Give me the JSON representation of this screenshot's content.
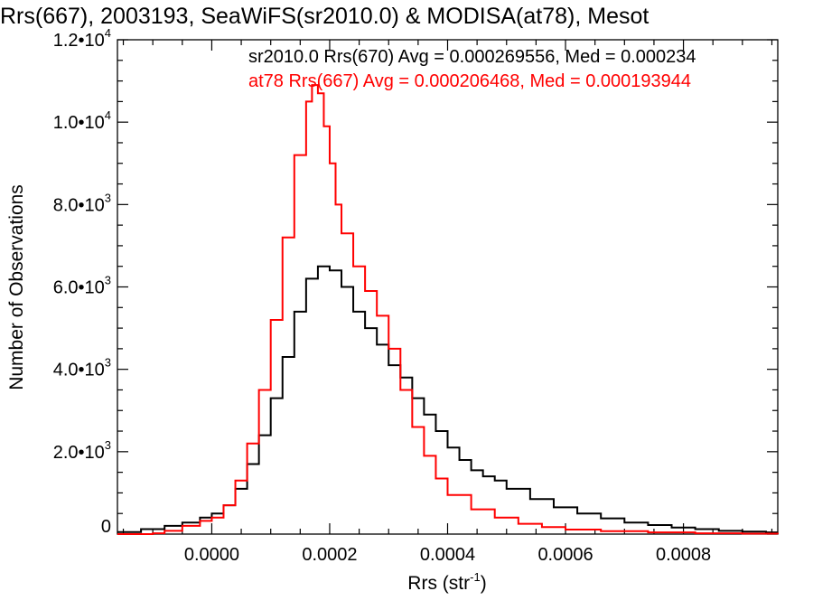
{
  "chart_data": {
    "type": "line",
    "title": "Rrs(667), 2003193, SeaWiFS(sr2010.0) & MODISA(at78), Mesot",
    "xlabel": "Rrs (str",
    "xlabel_sup": "-1",
    "xlabel_close": ")",
    "ylabel": "Number of Observations",
    "xlim": [
      -0.00016,
      0.00096
    ],
    "ylim": [
      0,
      12000
    ],
    "x_ticks": [
      {
        "value": 0.0,
        "label": "0.0000"
      },
      {
        "value": 0.0002,
        "label": "0.0002"
      },
      {
        "value": 0.0004,
        "label": "0.0004"
      },
      {
        "value": 0.0006,
        "label": "0.0006"
      },
      {
        "value": 0.0008,
        "label": "0.0008"
      }
    ],
    "y_ticks": [
      {
        "value": 0,
        "mant": "0",
        "exp": ""
      },
      {
        "value": 2000,
        "mant": "2.0•10",
        "exp": "3"
      },
      {
        "value": 4000,
        "mant": "4.0•10",
        "exp": "3"
      },
      {
        "value": 6000,
        "mant": "6.0•10",
        "exp": "3"
      },
      {
        "value": 8000,
        "mant": "8.0•10",
        "exp": "3"
      },
      {
        "value": 10000,
        "mant": "1.0•10",
        "exp": "4"
      },
      {
        "value": 12000,
        "mant": "1.2•10",
        "exp": "4"
      }
    ],
    "annotations": [
      {
        "text": "sr2010.0 Rrs(670) Avg = 0.000269556, Med = 0.000234",
        "color": "#000000"
      },
      {
        "text": "at78 Rrs(667) Avg = 0.000206468, Med = 0.000193944",
        "color": "#ff0000"
      }
    ],
    "series": [
      {
        "color": "#000000",
        "step": true,
        "x": [
          -0.00016,
          -0.00012,
          -8e-05,
          -5e-05,
          -2e-05,
          0.0,
          2e-05,
          4e-05,
          6e-05,
          8e-05,
          0.0001,
          0.00012,
          0.00014,
          0.00016,
          0.00018,
          0.0002,
          0.00022,
          0.00024,
          0.00026,
          0.00028,
          0.0003,
          0.00032,
          0.00034,
          0.00036,
          0.00038,
          0.0004,
          0.00042,
          0.00044,
          0.00046,
          0.00048,
          0.0005,
          0.00054,
          0.00058,
          0.00062,
          0.00066,
          0.0007,
          0.00074,
          0.00078,
          0.00082,
          0.00086,
          0.0009,
          0.00094
        ],
        "y": [
          50,
          120,
          200,
          280,
          400,
          500,
          700,
          1100,
          1700,
          2400,
          3300,
          4300,
          5400,
          6200,
          6500,
          6400,
          6000,
          5400,
          5000,
          4600,
          4100,
          3800,
          3300,
          2900,
          2500,
          2100,
          1800,
          1550,
          1400,
          1300,
          1100,
          850,
          650,
          500,
          380,
          280,
          220,
          160,
          120,
          80,
          60,
          40
        ]
      },
      {
        "color": "#ff0000",
        "step": true,
        "x": [
          -0.00016,
          -0.00012,
          -0.0001,
          -8e-05,
          -5e-05,
          -2e-05,
          0.0,
          2e-05,
          4e-05,
          6e-05,
          8e-05,
          0.0001,
          0.00012,
          0.00014,
          0.00016,
          0.00017,
          0.00018,
          0.00019,
          0.0002,
          0.00021,
          0.00022,
          0.00024,
          0.00026,
          0.00028,
          0.0003,
          0.00032,
          0.00034,
          0.00036,
          0.00038,
          0.0004,
          0.00044,
          0.00048,
          0.00052,
          0.00056,
          0.0006,
          0.00066,
          0.00074,
          0.00082,
          0.0009,
          0.00096
        ],
        "y": [
          0,
          0,
          20,
          80,
          200,
          320,
          400,
          700,
          1300,
          2200,
          3500,
          5200,
          7200,
          9200,
          10500,
          10900,
          10700,
          9900,
          9000,
          8000,
          7300,
          6500,
          5900,
          5300,
          4500,
          3500,
          2600,
          1900,
          1350,
          950,
          600,
          400,
          250,
          170,
          110,
          70,
          40,
          20,
          10,
          0
        ]
      }
    ]
  }
}
